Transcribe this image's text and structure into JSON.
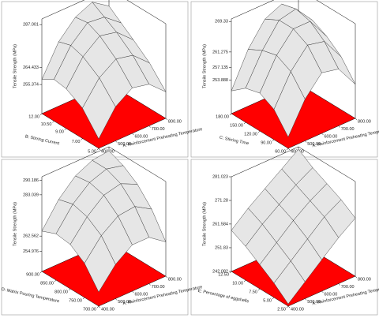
{
  "chart_data": [
    {
      "type": "surface",
      "zlabel": "Tensile Strength (MPa)",
      "xlabel": "A: Reinforcement Preheating Temperature",
      "ylabel": "B: Stirring Current",
      "x": [
        400,
        500,
        600,
        700,
        800
      ],
      "y": [
        5,
        7,
        9,
        10.5,
        12
      ],
      "z": [
        [
          245,
          258,
          264,
          262,
          254
        ],
        [
          256,
          268,
          274,
          272,
          264
        ],
        [
          261,
          274,
          281,
          279,
          271
        ],
        [
          262,
          276,
          284,
          283,
          276
        ],
        [
          258,
          274,
          283,
          287,
          281
        ]
      ],
      "xlim": [
        400,
        800
      ],
      "ylim": [
        5,
        12
      ],
      "zlim": [
        240,
        290
      ],
      "xticks": [
        {
          "value": 400,
          "label": "400.00"
        },
        {
          "value": 500,
          "label": "500.00"
        },
        {
          "value": 600,
          "label": "600.00"
        },
        {
          "value": 700,
          "label": "700.00"
        },
        {
          "value": 800,
          "label": "800.00"
        }
      ],
      "yticks": [
        {
          "value": 5,
          "label": "5.00"
        },
        {
          "value": 7,
          "label": "7.00"
        },
        {
          "value": 9,
          "label": "9.00"
        },
        {
          "value": 10.5,
          "label": "10.50"
        },
        {
          "value": 12,
          "label": "12.00"
        }
      ],
      "zticks": [
        255.374,
        264.433,
        287.001
      ],
      "floor_color": "#ff0000",
      "surface_color": "#e6e6e6"
    },
    {
      "type": "surface",
      "zlabel": "Tensile Strength (MPa)",
      "xlabel": "A: Reinforcement Preheating Temperature",
      "ylabel": "C: Stirring Time",
      "x": [
        400,
        500,
        600,
        700,
        800
      ],
      "y": [
        60,
        90,
        120,
        150,
        180
      ],
      "z": [
        [
          248,
          256,
          261,
          260,
          254
        ],
        [
          253,
          261,
          266,
          265,
          259
        ],
        [
          255,
          263,
          268,
          268,
          262
        ],
        [
          254,
          262,
          268,
          269,
          264
        ],
        [
          251,
          260,
          266,
          268,
          264
        ]
      ],
      "xlim": [
        400,
        800
      ],
      "ylim": [
        60,
        180
      ],
      "zlim": [
        245,
        270
      ],
      "xticks": [
        {
          "value": 400,
          "label": "400.00"
        },
        {
          "value": 500,
          "label": "500.00"
        },
        {
          "value": 600,
          "label": "600.00"
        },
        {
          "value": 700,
          "label": "700.00"
        },
        {
          "value": 800,
          "label": "800.00"
        }
      ],
      "yticks": [
        {
          "value": 60,
          "label": "60.00"
        },
        {
          "value": 90,
          "label": "90.00"
        },
        {
          "value": 120,
          "label": "120.00"
        },
        {
          "value": 150,
          "label": "150.00"
        },
        {
          "value": 180,
          "label": "180.00"
        }
      ],
      "zticks": [
        253.888,
        257.135,
        261.275,
        269.33
      ],
      "floor_color": "#ff0000",
      "surface_color": "#e6e6e6"
    },
    {
      "type": "surface",
      "zlabel": "Tensile Strength (MPa)",
      "xlabel": "A: Reinforcement Preheating Temperature",
      "ylabel": "D: Matrix Pouring Temperature",
      "x": [
        400,
        500,
        600,
        700,
        800
      ],
      "y": [
        700,
        750,
        800,
        850,
        900
      ],
      "z": [
        [
          252,
          262,
          268,
          268,
          262
        ],
        [
          262,
          272,
          278,
          279,
          274
        ],
        [
          267,
          277,
          284,
          286,
          282
        ],
        [
          268,
          279,
          286,
          289,
          287
        ],
        [
          265,
          277,
          285,
          289,
          290
        ]
      ],
      "xlim": [
        400,
        800
      ],
      "ylim": [
        700,
        900
      ],
      "zlim": [
        245,
        292
      ],
      "xticks": [
        {
          "value": 400,
          "label": "400.00"
        },
        {
          "value": 500,
          "label": "500.00"
        },
        {
          "value": 600,
          "label": "600.00"
        },
        {
          "value": 700,
          "label": "700.00"
        },
        {
          "value": 800,
          "label": "800.00"
        }
      ],
      "yticks": [
        {
          "value": 700,
          "label": "700.00"
        },
        {
          "value": 750,
          "label": "750.00"
        },
        {
          "value": 800,
          "label": "800.00"
        },
        {
          "value": 850,
          "label": "850.00"
        },
        {
          "value": 900,
          "label": "900.00"
        }
      ],
      "zticks": [
        254.976,
        262.562,
        283.039,
        290.186
      ],
      "floor_color": "#ff0000",
      "surface_color": "#e6e6e6"
    },
    {
      "type": "surface",
      "zlabel": "Tensile Strength (MPa)",
      "xlabel": "A: Reinforcement Preheating Temperature",
      "ylabel": "E: Percentage of eggshells",
      "x": [
        400,
        500,
        600,
        700,
        800
      ],
      "y": [
        2.5,
        5,
        7.5,
        10,
        12.5
      ],
      "z": [
        [
          243,
          249,
          255,
          261,
          266
        ],
        [
          248,
          254,
          260,
          266,
          270
        ],
        [
          252,
          258,
          264,
          269,
          273
        ],
        [
          256,
          262,
          267,
          272,
          276
        ],
        [
          259,
          265,
          270,
          275,
          280
        ]
      ],
      "xlim": [
        400,
        800
      ],
      "ylim": [
        2.5,
        12.5
      ],
      "zlim": [
        242.082,
        281.023
      ],
      "xticks": [
        {
          "value": 400,
          "label": "400.00"
        },
        {
          "value": 500,
          "label": "500.00"
        },
        {
          "value": 600,
          "label": "600.00"
        },
        {
          "value": 700,
          "label": "700.00"
        },
        {
          "value": 800,
          "label": "800.00"
        }
      ],
      "yticks": [
        {
          "value": 2.5,
          "label": "2.50"
        },
        {
          "value": 5,
          "label": "5.00"
        },
        {
          "value": 7.5,
          "label": "7.50"
        },
        {
          "value": 10,
          "label": "10.00"
        },
        {
          "value": 12.5,
          "label": "12.50"
        }
      ],
      "zticks": [
        242.082,
        251.83,
        261.584,
        271.28,
        281.023
      ],
      "floor_color": "#ff0000",
      "surface_color": "#e6e6e6"
    }
  ]
}
